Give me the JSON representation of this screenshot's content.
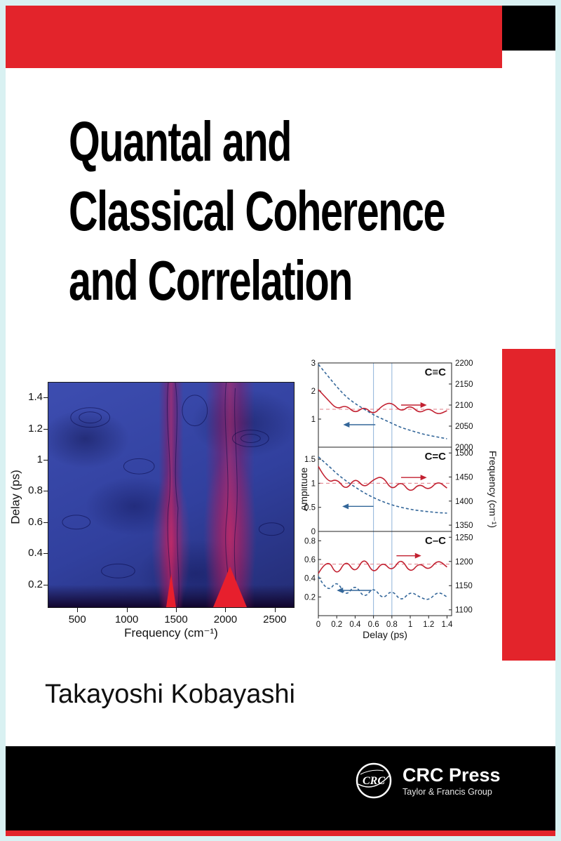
{
  "cover": {
    "title_lines": [
      "Quantal and",
      "Classical Coherence",
      "and Correlation"
    ],
    "author": "Takayoshi Kobayashi",
    "publisher": {
      "logo_text": "CRC",
      "name": "CRC Press",
      "tagline": "Taylor & Francis Group"
    },
    "colors": {
      "red": "#e3242b",
      "contour_blue": "#31409e",
      "black": "#000000",
      "frame": "#d9f1f2"
    }
  },
  "contour_plot": {
    "type": "heatmap",
    "ylabel": "Delay (ps)",
    "xlabel": "Frequency (cm⁻¹)",
    "yticks": [
      0.2,
      0.4,
      0.6,
      0.8,
      1,
      1.2,
      1.4
    ],
    "xticks": [
      500,
      1000,
      1500,
      2000,
      2500
    ],
    "xlim": [
      200,
      2700
    ],
    "ylim": [
      0.05,
      1.5
    ]
  },
  "amplitude_figure": {
    "left_label": "Amplitude",
    "right_label": "Frequency (cm⁻¹)",
    "xlabel": "Delay (ps)",
    "xticks": [
      0,
      0.2,
      0.4,
      0.6,
      0.8,
      1,
      1.2,
      1.4
    ],
    "xlim": [
      0,
      1.45
    ],
    "vlines": [
      0.6,
      0.8
    ]
  },
  "chart_data": [
    {
      "type": "line",
      "label": "C≡C",
      "x": [
        0,
        0.1,
        0.2,
        0.3,
        0.4,
        0.5,
        0.6,
        0.7,
        0.8,
        0.9,
        1.0,
        1.1,
        1.2,
        1.3,
        1.4
      ],
      "series": [
        {
          "name": "amplitude",
          "color": "#c22030",
          "dashed": false,
          "values": [
            2.05,
            1.7,
            1.35,
            1.5,
            1.2,
            1.45,
            1.15,
            1.5,
            1.6,
            1.25,
            1.5,
            1.2,
            1.4,
            1.15,
            1.3
          ]
        },
        {
          "name": "frequency",
          "color": "#336699",
          "dashed": true,
          "values": [
            2.95,
            2.55,
            2.15,
            1.8,
            1.55,
            1.35,
            1.15,
            1.0,
            0.85,
            0.7,
            0.6,
            0.5,
            0.42,
            0.36,
            0.3
          ]
        }
      ],
      "ylim": [
        0,
        3
      ],
      "left_ticks": [
        1,
        2,
        3
      ],
      "right_ticks": [
        2000,
        2050,
        2100,
        2150,
        2200
      ],
      "right_lim": [
        2000,
        2200
      ],
      "mean_line": 1.35,
      "red_arrow": {
        "x1": 0.9,
        "x2": 1.18,
        "y": 1.5
      },
      "blue_arrow": {
        "x1": 0.62,
        "x2": 0.27,
        "y": 0.8
      }
    },
    {
      "type": "line",
      "label": "C=C",
      "x": [
        0,
        0.1,
        0.2,
        0.3,
        0.4,
        0.5,
        0.6,
        0.7,
        0.8,
        0.9,
        1.0,
        1.1,
        1.2,
        1.3,
        1.4
      ],
      "series": [
        {
          "name": "amplitude",
          "color": "#c22030",
          "dashed": false,
          "values": [
            1.35,
            1.0,
            1.1,
            0.85,
            1.12,
            0.9,
            1.08,
            1.15,
            0.85,
            1.05,
            0.8,
            1.0,
            0.85,
            1.05,
            0.9
          ]
        },
        {
          "name": "frequency",
          "color": "#336699",
          "dashed": true,
          "values": [
            1.55,
            1.38,
            1.2,
            1.05,
            0.92,
            0.8,
            0.7,
            0.62,
            0.55,
            0.5,
            0.46,
            0.43,
            0.41,
            0.39,
            0.38
          ]
        }
      ],
      "ylim": [
        0,
        1.75
      ],
      "left_ticks": [
        0,
        0.5,
        1,
        1.5
      ],
      "right_ticks": [
        1350,
        1400,
        1450,
        1500
      ],
      "right_lim": [
        1337,
        1512
      ],
      "mean_line": 1.0,
      "red_arrow": {
        "x1": 0.9,
        "x2": 1.18,
        "y": 1.12
      },
      "blue_arrow": {
        "x1": 0.6,
        "x2": 0.26,
        "y": 0.52
      }
    },
    {
      "type": "line",
      "label": "C–C",
      "x": [
        0,
        0.1,
        0.2,
        0.3,
        0.4,
        0.5,
        0.6,
        0.7,
        0.8,
        0.9,
        1.0,
        1.1,
        1.2,
        1.3,
        1.4
      ],
      "series": [
        {
          "name": "amplitude",
          "color": "#c22030",
          "dashed": false,
          "values": [
            0.45,
            0.62,
            0.42,
            0.6,
            0.45,
            0.63,
            0.44,
            0.58,
            0.47,
            0.62,
            0.45,
            0.57,
            0.48,
            0.6,
            0.52
          ]
        },
        {
          "name": "frequency",
          "color": "#336699",
          "dashed": true,
          "values": [
            0.42,
            0.24,
            0.38,
            0.2,
            0.34,
            0.18,
            0.31,
            0.17,
            0.28,
            0.15,
            0.26,
            0.2,
            0.16,
            0.26,
            0.2
          ]
        }
      ],
      "ylim": [
        0,
        0.9
      ],
      "left_ticks": [
        0.2,
        0.4,
        0.6,
        0.8
      ],
      "right_ticks": [
        1100,
        1150,
        1200,
        1250
      ],
      "right_lim": [
        1088,
        1262
      ],
      "mean_line": 0.55,
      "red_arrow": {
        "x1": 0.85,
        "x2": 1.12,
        "y": 0.64
      },
      "blue_arrow": {
        "x1": 0.58,
        "x2": 0.2,
        "y": 0.27
      }
    }
  ]
}
